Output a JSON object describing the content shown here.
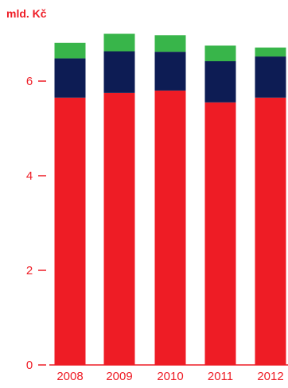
{
  "chart_data": {
    "type": "bar",
    "stacked": true,
    "ylabel": "mld. Kč",
    "categories": [
      "2008",
      "2009",
      "2010",
      "2011",
      "2012"
    ],
    "series": [
      {
        "color": "#ee1c25",
        "values": [
          5.65,
          5.75,
          5.8,
          5.55,
          5.65
        ]
      },
      {
        "color": "#0d1c54",
        "values": [
          0.83,
          0.88,
          0.82,
          0.87,
          0.87
        ]
      },
      {
        "color": "#38b54a",
        "values": [
          0.33,
          0.37,
          0.35,
          0.33,
          0.19
        ]
      }
    ],
    "yticks": [
      0,
      2,
      4,
      6
    ],
    "ylim": [
      0,
      7.0
    ],
    "grid": false,
    "legend": "none",
    "colors": {
      "text": "#ee1c25",
      "axis": "#ee1c25"
    }
  }
}
